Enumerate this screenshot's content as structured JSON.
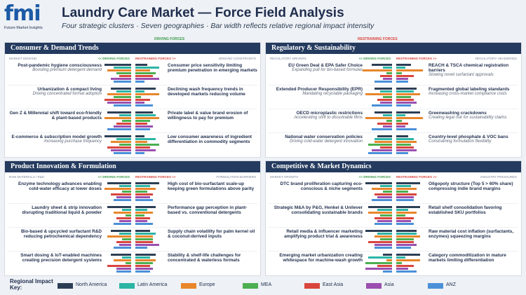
{
  "header": {
    "logo": "fmi",
    "logo_caption": "Future Market Insights",
    "title": "Laundry Care Market — Force Field Analysis",
    "subtitle": "Four strategic clusters · Seven geographies · Bar width reflects relative regional impact intensity"
  },
  "force_labels": {
    "driving": "DRIVING FORCES",
    "restraining": "RESTRAINING FORCES"
  },
  "legend_title": "Regional Impact Key:",
  "regions": [
    {
      "name": "North America",
      "color": "#2c3e55"
    },
    {
      "name": "Latin America",
      "color": "#2bb5a5"
    },
    {
      "name": "Europe",
      "color": "#e8862a"
    },
    {
      "name": "MEA",
      "color": "#4caf50"
    },
    {
      "name": "East Asia",
      "color": "#d9453d"
    },
    {
      "name": "Asia",
      "color": "#9b4fb0"
    },
    {
      "name": "ANZ",
      "color": "#4a90d9"
    }
  ],
  "quadrants": [
    {
      "title": "Consumer & Demand Trends",
      "driver_tag": "MARKET DEMAND",
      "driver_header": "<< DRIVING FORCES",
      "restraint_header": "RESTRAINING FORCES >>",
      "restraint_tag": "DEMAND CONSTRAINTS",
      "drivers": [
        {
          "title": "Post-pandemic hygiene consciousness",
          "note": "Boosting premium detergent demand",
          "values": [
            9,
            6,
            8,
            5,
            4,
            7,
            6
          ]
        },
        {
          "title": "Urbanization & compact living",
          "note": "Driving concentrated format adoption",
          "values": [
            7,
            5,
            8,
            6,
            9,
            8,
            6
          ]
        },
        {
          "title": "Gen Z & Millennial shift toward eco-friendly & plant-based products",
          "values": [
            8,
            4,
            9,
            3,
            5,
            6,
            8
          ]
        },
        {
          "title": "E-commerce & subscription model growth",
          "note": "Increasing purchase frequency",
          "values": [
            9,
            5,
            7,
            4,
            8,
            7,
            6
          ]
        }
      ],
      "restraints": [
        {
          "title": "Consumer price sensitivity limiting premium penetration in emerging markets",
          "values": [
            4,
            8,
            5,
            7,
            6,
            8,
            3
          ]
        },
        {
          "title": "Declining wash frequency trends in developed markets reducing volume",
          "values": [
            7,
            3,
            8,
            2,
            5,
            3,
            6
          ]
        },
        {
          "title": "Private label & value brand erosion of willingness to pay for premium",
          "values": [
            6,
            7,
            8,
            5,
            4,
            6,
            5
          ]
        },
        {
          "title": "Low consumer awareness of ingredient differentiation in commodity segments",
          "values": [
            3,
            7,
            4,
            8,
            5,
            7,
            3
          ]
        }
      ]
    },
    {
      "title": "Regulatory & Sustainability",
      "driver_tag": "REGULATORY DRIVERS",
      "driver_header": "<< DRIVING FORCES",
      "restraint_header": "RESTRAINING FORCES >>",
      "restraint_tag": "REGULATORY HEADWINDS",
      "drivers": [
        {
          "title": "EU Green Deal & EPA Safer Choice",
          "note": "Expanding pull for bio-based formulas",
          "values": [
            7,
            3,
            10,
            2,
            4,
            3,
            6
          ]
        },
        {
          "title": "Extended Producer Responsibility (EPR)",
          "note": "Mandating recyclable packaging",
          "values": [
            6,
            4,
            9,
            3,
            5,
            4,
            7
          ]
        },
        {
          "title": "OECD microplastic restrictions",
          "note": "Accelerating shift to dissolvable films",
          "values": [
            6,
            3,
            9,
            2,
            5,
            3,
            7
          ]
        },
        {
          "title": "National water conservation policies",
          "note": "Driving cold-water detergent innovation",
          "values": [
            5,
            6,
            6,
            8,
            4,
            7,
            8
          ]
        }
      ],
      "restraints": [
        {
          "title": "REACH & TSCA chemical registration barriers",
          "note": "Slowing novel surfactant approvals",
          "values": [
            5,
            3,
            9,
            2,
            6,
            4,
            4
          ]
        },
        {
          "title": "Fragmented global labeling standards",
          "note": "Increasing cross-market compliance costs",
          "values": [
            7,
            6,
            8,
            5,
            6,
            7,
            5
          ]
        },
        {
          "title": "Greenwashing crackdowns",
          "note": "Creating legal risk for sustainability claims",
          "values": [
            8,
            3,
            9,
            2,
            4,
            3,
            7
          ]
        },
        {
          "title": "Country-level phosphate & VOC bans",
          "note": "Constraining formulation flexibility",
          "values": [
            4,
            6,
            7,
            5,
            6,
            7,
            4
          ]
        }
      ]
    },
    {
      "title": "Product Innovation & Formulation",
      "driver_tag": "RAW MATERIALS / R&D",
      "driver_header": "<< DRIVING FORCES",
      "restraint_header": "RESTRAINING FORCES >>",
      "restraint_tag": "FORMULATION BARRIERS",
      "drivers": [
        {
          "title": "Enzyme technology advances enabling cold-water efficacy at lower doses",
          "values": [
            8,
            4,
            9,
            3,
            7,
            5,
            6
          ]
        },
        {
          "title": "Laundry sheet & strip innovation disrupting traditional liquid & powder",
          "values": [
            8,
            3,
            6,
            2,
            5,
            4,
            6
          ]
        },
        {
          "title": "Bio-based & upcycled surfactant R&D reducing petrochemical dependency",
          "values": [
            7,
            4,
            8,
            3,
            5,
            4,
            6
          ]
        },
        {
          "title": "Smart dosing & IoT-enabled machines creating precision detergent systems",
          "values": [
            7,
            3,
            6,
            2,
            8,
            5,
            5
          ]
        }
      ],
      "restraints": [
        {
          "title": "High cost of bio-surfactant scale-up keeping green formulations above parity",
          "values": [
            8,
            5,
            7,
            4,
            6,
            5,
            6
          ]
        },
        {
          "title": "Performance gap perception in plant-based vs. conventional detergents",
          "values": [
            7,
            4,
            6,
            3,
            5,
            4,
            6
          ]
        },
        {
          "title": "Supply chain volatility for palm kernel oil & coconut-derived inputs",
          "values": [
            5,
            7,
            6,
            6,
            6,
            8,
            4
          ]
        },
        {
          "title": "Stability & shelf-life challenges for concentrated & waterless formats",
          "values": [
            7,
            5,
            7,
            6,
            5,
            6,
            5
          ]
        }
      ]
    },
    {
      "title": "Competitive & Market Dynamics",
      "driver_tag": "MARKET GROWTH",
      "driver_header": "<< DRIVING FORCES",
      "restraint_header": "RESTRAINING FORCES >>",
      "restraint_tag": "INDUSTRY PRESSURES",
      "drivers": [
        {
          "title": "DTC brand proliferation capturing eco-conscious & niche segments",
          "values": [
            9,
            4,
            7,
            3,
            6,
            5,
            7
          ]
        },
        {
          "title": "Strategic M&A by P&G, Henkel & Unilever consolidating sustainable brands",
          "values": [
            8,
            5,
            8,
            4,
            6,
            5,
            6
          ]
        },
        {
          "title": "Retail media & influencer marketing amplifying product trial & awareness",
          "values": [
            9,
            5,
            6,
            4,
            8,
            6,
            6
          ]
        },
        {
          "title": "Emerging market urbanization creating whitespace for machine-wash growth",
          "values": [
            3,
            8,
            2,
            9,
            5,
            9,
            3
          ]
        }
      ],
      "restraints": [
        {
          "title": "Oligopoly structure (Top 5 > 60% share) compressing indie brand margins",
          "values": [
            8,
            5,
            7,
            4,
            7,
            6,
            6
          ]
        },
        {
          "title": "Retail shelf consolidation favoring established SKU portfolios",
          "values": [
            8,
            4,
            7,
            3,
            6,
            5,
            6
          ]
        },
        {
          "title": "Raw material cost inflation (surfactants, enzymes) squeezing margins",
          "values": [
            7,
            7,
            8,
            6,
            6,
            7,
            5
          ]
        },
        {
          "title": "Category commoditization in mature markets limiting differentiation",
          "values": [
            8,
            3,
            8,
            2,
            6,
            4,
            7
          ]
        }
      ]
    }
  ]
}
